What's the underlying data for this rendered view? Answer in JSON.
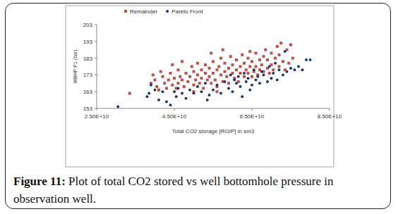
{
  "chart_data": {
    "type": "scatter",
    "x_label": "Total CO2 storage [RGIP] in sm3",
    "y_label": "WBHP:P1 (bar)",
    "xlim": [
      25000000000.0,
      85000000000.0
    ],
    "ylim": [
      153,
      203
    ],
    "xticks": [
      {
        "value": 25000000000.0,
        "label": "2.50E+10"
      },
      {
        "value": 45000000000.0,
        "label": "4.50E+10"
      },
      {
        "value": 65000000000.0,
        "label": "6.50E+10"
      },
      {
        "value": 85000000000.0,
        "label": "8.50E+10"
      }
    ],
    "yticks": [
      153,
      163,
      173,
      183,
      193,
      203
    ],
    "grid": false,
    "legend": "top",
    "series": [
      {
        "name": "Remainder",
        "color": "#c0504d",
        "marker": "square",
        "x": [
          33500000000.0,
          39000000000.0,
          40000000000.0,
          40500000000.0,
          42000000000.0,
          42500000000.0,
          43000000000.0,
          43500000000.0,
          44000000000.0,
          44500000000.0,
          45000000000.0,
          45500000000.0,
          46000000000.0,
          46000000000.0,
          46500000000.0,
          47000000000.0,
          47500000000.0,
          48000000000.0,
          48500000000.0,
          49000000000.0,
          49500000000.0,
          50000000000.0,
          50000000000.0,
          50500000000.0,
          51000000000.0,
          51000000000.0,
          51500000000.0,
          52000000000.0,
          52000000000.0,
          52500000000.0,
          53000000000.0,
          53000000000.0,
          53500000000.0,
          54000000000.0,
          54000000000.0,
          54500000000.0,
          55000000000.0,
          55000000000.0,
          55500000000.0,
          56000000000.0,
          56000000000.0,
          56500000000.0,
          57000000000.0,
          57000000000.0,
          57500000000.0,
          58000000000.0,
          58000000000.0,
          58500000000.0,
          59000000000.0,
          59000000000.0,
          59500000000.0,
          60000000000.0,
          60000000000.0,
          60500000000.0,
          61000000000.0,
          61000000000.0,
          61500000000.0,
          62000000000.0,
          62000000000.0,
          62500000000.0,
          63000000000.0,
          63000000000.0,
          63500000000.0,
          64000000000.0,
          64000000000.0,
          64500000000.0,
          65000000000.0,
          65000000000.0,
          65500000000.0,
          66000000000.0,
          66000000000.0,
          66500000000.0,
          67000000000.0,
          67000000000.0,
          67500000000.0,
          68000000000.0,
          68000000000.0,
          68500000000.0,
          69000000000.0,
          69000000000.0,
          69500000000.0,
          70000000000.0,
          70000000000.0,
          70500000000.0,
          71000000000.0,
          71500000000.0,
          72000000000.0,
          72000000000.0,
          72500000000.0,
          73000000000.0,
          73500000000.0,
          74000000000.0,
          74500000000.0,
          75000000000.0,
          75500000000.0,
          41500000000.0,
          44500000000.0,
          47000000000.0,
          54500000000.0,
          57500000000.0,
          64500000000.0,
          39500000000.0,
          41000000000.0,
          50000000000.0,
          56000000000.0
        ],
        "values": [
          162,
          168,
          170,
          166,
          172,
          168,
          165,
          170,
          174,
          167,
          171,
          165,
          168,
          176,
          172,
          170,
          166,
          174,
          169,
          172,
          178,
          167,
          175,
          170,
          173,
          180,
          168,
          176,
          171,
          165,
          174,
          179,
          170,
          172,
          177,
          168,
          181,
          174,
          170,
          176,
          166,
          178,
          173,
          183,
          169,
          175,
          180,
          172,
          177,
          168,
          184,
          174,
          179,
          171,
          176,
          182,
          169,
          178,
          174,
          185,
          172,
          180,
          176,
          183,
          174,
          178,
          172,
          181,
          175,
          186,
          178,
          173,
          182,
          176,
          179,
          184,
          175,
          188,
          177,
          182,
          174,
          186,
          179,
          176,
          183,
          190,
          178,
          185,
          192,
          181,
          176,
          188,
          180,
          191,
          183,
          175,
          179,
          181,
          186,
          188,
          187,
          173,
          164,
          163,
          163
        ]
      },
      {
        "name": "Pareto Front",
        "color": "#1f3864",
        "marker": "circle",
        "x": [
          30500000000.0,
          38000000000.0,
          38500000000.0,
          39000000000.0,
          40000000000.0,
          41000000000.0,
          43000000000.0,
          44000000000.0,
          45000000000.0,
          45500000000.0,
          46000000000.0,
          47000000000.0,
          48000000000.0,
          49000000000.0,
          50000000000.0,
          51000000000.0,
          52000000000.0,
          53000000000.0,
          54000000000.0,
          55000000000.0,
          56000000000.0,
          57000000000.0,
          58000000000.0,
          59000000000.0,
          60000000000.0,
          61000000000.0,
          61500000000.0,
          62000000000.0,
          63000000000.0,
          63500000000.0,
          64000000000.0,
          64500000000.0,
          65000000000.0,
          65500000000.0,
          66000000000.0,
          66500000000.0,
          67000000000.0,
          67500000000.0,
          68000000000.0,
          69000000000.0,
          69500000000.0,
          70000000000.0,
          70500000000.0,
          71000000000.0,
          71500000000.0,
          72000000000.0,
          73000000000.0,
          73500000000.0,
          74000000000.0,
          75000000000.0,
          76000000000.0,
          77000000000.0,
          78000000000.0,
          79000000000.0,
          80000000000.0,
          59500000000.0,
          62500000000.0,
          53500000000.0,
          42000000000.0,
          60500000000.0
        ],
        "values": [
          154,
          160,
          162,
          167,
          164,
          158,
          157,
          155,
          163,
          160,
          165,
          162,
          159,
          164,
          162,
          166,
          163,
          168,
          161,
          164,
          167,
          162,
          169,
          165,
          163,
          168,
          172,
          166,
          174,
          169,
          171,
          164,
          167,
          176,
          170,
          172,
          168,
          175,
          173,
          169,
          178,
          171,
          174,
          180,
          170,
          176,
          173,
          187,
          175,
          177,
          176,
          178,
          176,
          182,
          182,
          173,
          160,
          158,
          163,
          170
        ]
      }
    ]
  },
  "caption": {
    "label": "Figure 11:",
    "text": "Plot of total CO2 stored vs well bottomhole pressure in observation well."
  }
}
